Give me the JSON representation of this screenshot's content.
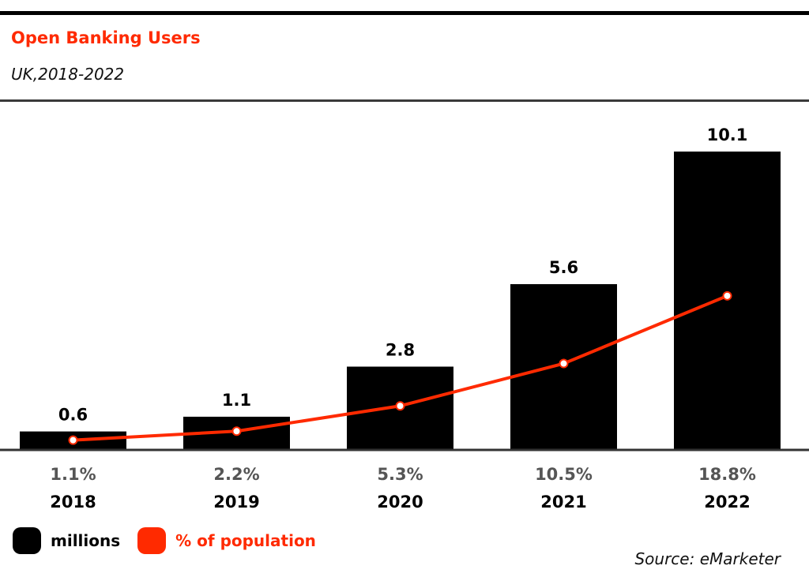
{
  "colors": {
    "bar": "#000000",
    "line": "#ff2a00",
    "pct_text": "#555555",
    "accent": "#ff2a00"
  },
  "header": {
    "title": "Open Banking Users",
    "subtitle": "UK,2018-2022"
  },
  "legend": [
    {
      "label": "millions",
      "color": "#000000"
    },
    {
      "label": "% of population",
      "color": "#ff2a00"
    }
  ],
  "source": "Source: eMarketer",
  "chart_data": {
    "type": "bar",
    "title": "Open Banking Users",
    "subtitle": "UK,2018-2022",
    "xlabel": "",
    "ylabel": "",
    "categories": [
      "2018",
      "2019",
      "2020",
      "2021",
      "2022"
    ],
    "series": [
      {
        "name": "millions",
        "type": "bar",
        "values": [
          0.6,
          1.1,
          2.8,
          5.6,
          10.1
        ],
        "value_labels": [
          "0.6",
          "1.1",
          "2.8",
          "5.6",
          "10.1"
        ]
      },
      {
        "name": "% of population",
        "type": "line",
        "values": [
          1.1,
          2.2,
          5.3,
          10.5,
          18.8
        ],
        "value_labels": [
          "1.1%",
          "2.2%",
          "5.3%",
          "10.5%",
          "18.8%"
        ]
      }
    ],
    "ylim": [
      0,
      10.1
    ],
    "ylim_pct": [
      0,
      36.5
    ],
    "grid": false,
    "legend_position": "bottom-left"
  }
}
